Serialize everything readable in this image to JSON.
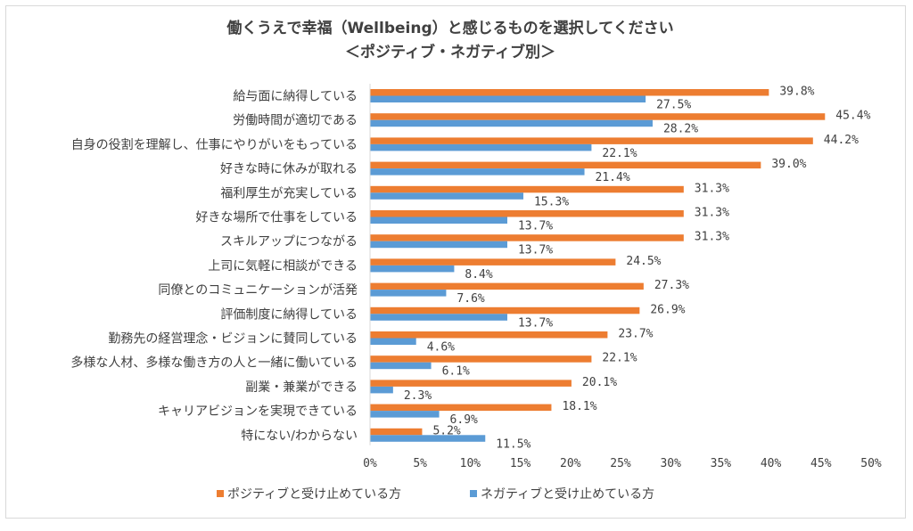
{
  "chart_data": {
    "type": "bar",
    "orientation": "horizontal",
    "title": "働くうえで幸福（Wellbeing）と感じるものを選択してください",
    "subtitle": "＜ポジティブ・ネガティブ別＞",
    "categories": [
      "給与面に納得している",
      "労働時間が適切である",
      "自身の役割を理解し、仕事にやりがいをもっている",
      "好きな時に休みが取れる",
      "福利厚生が充実している",
      "好きな場所で仕事をしている",
      "スキルアップにつながる",
      "上司に気軽に相談ができる",
      "同僚とのコミュニケーションが活発",
      "評価制度に納得している",
      "勤務先の経営理念・ビジョンに賛同している",
      "多様な人材、多様な働き方の人と一緒に働いている",
      "副業・兼業ができる",
      "キャリアビジョンを実現できている",
      "特にない/わからない"
    ],
    "series": [
      {
        "name": "ポジティブと受け止めている方",
        "color": "#ed7d31",
        "values": [
          39.8,
          45.4,
          44.2,
          39.0,
          31.3,
          31.3,
          31.3,
          24.5,
          27.3,
          26.9,
          23.7,
          22.1,
          20.1,
          18.1,
          5.2
        ],
        "labels": [
          "39.8%",
          "45.4%",
          "44.2%",
          "39.0%",
          "31.3%",
          "31.3%",
          "31.3%",
          "24.5%",
          "27.3%",
          "26.9%",
          "23.7%",
          "22.1%",
          "20.1%",
          "18.1%",
          "5.2%"
        ]
      },
      {
        "name": "ネガティブと受け止めている方",
        "color": "#5b9bd5",
        "values": [
          27.5,
          28.2,
          22.1,
          21.4,
          15.3,
          13.7,
          13.7,
          8.4,
          7.6,
          13.7,
          4.6,
          6.1,
          2.3,
          6.9,
          11.5
        ],
        "labels": [
          "27.5%",
          "28.2%",
          "22.1%",
          "21.4%",
          "15.3%",
          "13.7%",
          "13.7%",
          "8.4%",
          "7.6%",
          "13.7%",
          "4.6%",
          "6.1%",
          "2.3%",
          "6.9%",
          "11.5%"
        ]
      }
    ],
    "xlim": [
      0,
      50
    ],
    "x_ticks": [
      "0%",
      "5%",
      "10%",
      "15%",
      "20%",
      "25%",
      "30%",
      "35%",
      "40%",
      "45%",
      "50%"
    ],
    "x_tick_values": [
      0,
      5,
      10,
      15,
      20,
      25,
      30,
      35,
      40,
      45,
      50
    ],
    "grid": false,
    "legend_position": "bottom"
  }
}
